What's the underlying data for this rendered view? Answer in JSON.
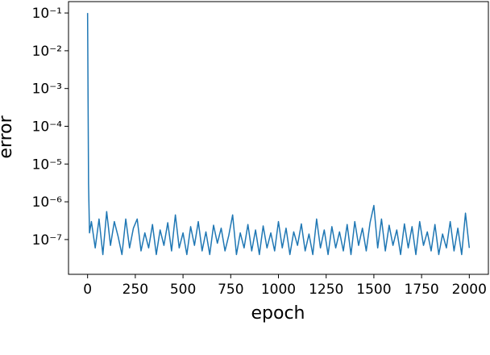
{
  "chart_data": {
    "type": "line",
    "x_label": "epoch",
    "y_label": "error",
    "log_y": true,
    "x": [
      0,
      5,
      10,
      20,
      40,
      60,
      80,
      100,
      120,
      140,
      160,
      180,
      200,
      220,
      240,
      260,
      280,
      300,
      320,
      340,
      360,
      380,
      400,
      420,
      440,
      460,
      480,
      500,
      520,
      540,
      560,
      580,
      600,
      620,
      640,
      660,
      680,
      700,
      720,
      740,
      760,
      780,
      800,
      820,
      840,
      860,
      880,
      900,
      920,
      940,
      960,
      980,
      1000,
      1020,
      1040,
      1060,
      1080,
      1100,
      1120,
      1140,
      1160,
      1180,
      1200,
      1220,
      1240,
      1260,
      1280,
      1300,
      1320,
      1340,
      1360,
      1380,
      1400,
      1420,
      1440,
      1460,
      1480,
      1500,
      1520,
      1540,
      1560,
      1580,
      1600,
      1620,
      1640,
      1660,
      1680,
      1700,
      1720,
      1740,
      1760,
      1780,
      1800,
      1820,
      1840,
      1860,
      1880,
      1900,
      1920,
      1940,
      1960,
      1980,
      2000
    ],
    "series": [
      {
        "color": "#1f77b4",
        "values": [
          0.1,
          3e-06,
          1.5e-07,
          3e-07,
          6e-08,
          3.5e-07,
          4e-08,
          5.5e-07,
          7e-08,
          3e-07,
          1.2e-07,
          4e-08,
          3.5e-07,
          6e-08,
          2e-07,
          3.5e-07,
          5e-08,
          1.5e-07,
          6e-08,
          2.5e-07,
          4e-08,
          1.8e-07,
          7e-08,
          2.8e-07,
          5e-08,
          4.5e-07,
          6e-08,
          1.5e-07,
          4e-08,
          2.2e-07,
          7e-08,
          3e-07,
          5e-08,
          1.6e-07,
          4e-08,
          2.4e-07,
          8e-08,
          2e-07,
          5e-08,
          1.3e-07,
          4.5e-07,
          4e-08,
          1.5e-07,
          6e-08,
          2.5e-07,
          5e-08,
          1.8e-07,
          4e-08,
          2.3e-07,
          6e-08,
          1.5e-07,
          5e-08,
          3e-07,
          6e-08,
          2e-07,
          4e-08,
          1.6e-07,
          7e-08,
          2.6e-07,
          5e-08,
          1.4e-07,
          4e-08,
          3.5e-07,
          6e-08,
          1.8e-07,
          4e-08,
          2.2e-07,
          6e-08,
          1.6e-07,
          5e-08,
          2.5e-07,
          4e-08,
          3e-07,
          7e-08,
          2e-07,
          5e-08,
          2.8e-07,
          8e-07,
          6e-08,
          3.5e-07,
          5e-08,
          2.4e-07,
          7e-08,
          1.8e-07,
          4e-08,
          2.6e-07,
          6e-08,
          2.2e-07,
          4e-08,
          3e-07,
          7e-08,
          1.6e-07,
          5e-08,
          2.5e-07,
          4e-08,
          1.4e-07,
          6e-08,
          3e-07,
          5e-08,
          2e-07,
          4e-08,
          5e-07,
          6e-08
        ]
      }
    ],
    "xlim": [
      -100,
      2100
    ],
    "ylim": [
      1.2e-08,
      0.2
    ],
    "xticks": [
      0,
      250,
      500,
      750,
      1000,
      1250,
      1500,
      1750,
      2000
    ],
    "yticks": [
      {
        "value": 1e-07,
        "label": "10⁻⁷"
      },
      {
        "value": 1e-06,
        "label": "10⁻⁶"
      },
      {
        "value": 1e-05,
        "label": "10⁻⁵"
      },
      {
        "value": 0.0001,
        "label": "10⁻⁴"
      },
      {
        "value": 0.001,
        "label": "10⁻³"
      },
      {
        "value": 0.01,
        "label": "10⁻²"
      },
      {
        "value": 0.1,
        "label": "10⁻¹"
      }
    ]
  }
}
